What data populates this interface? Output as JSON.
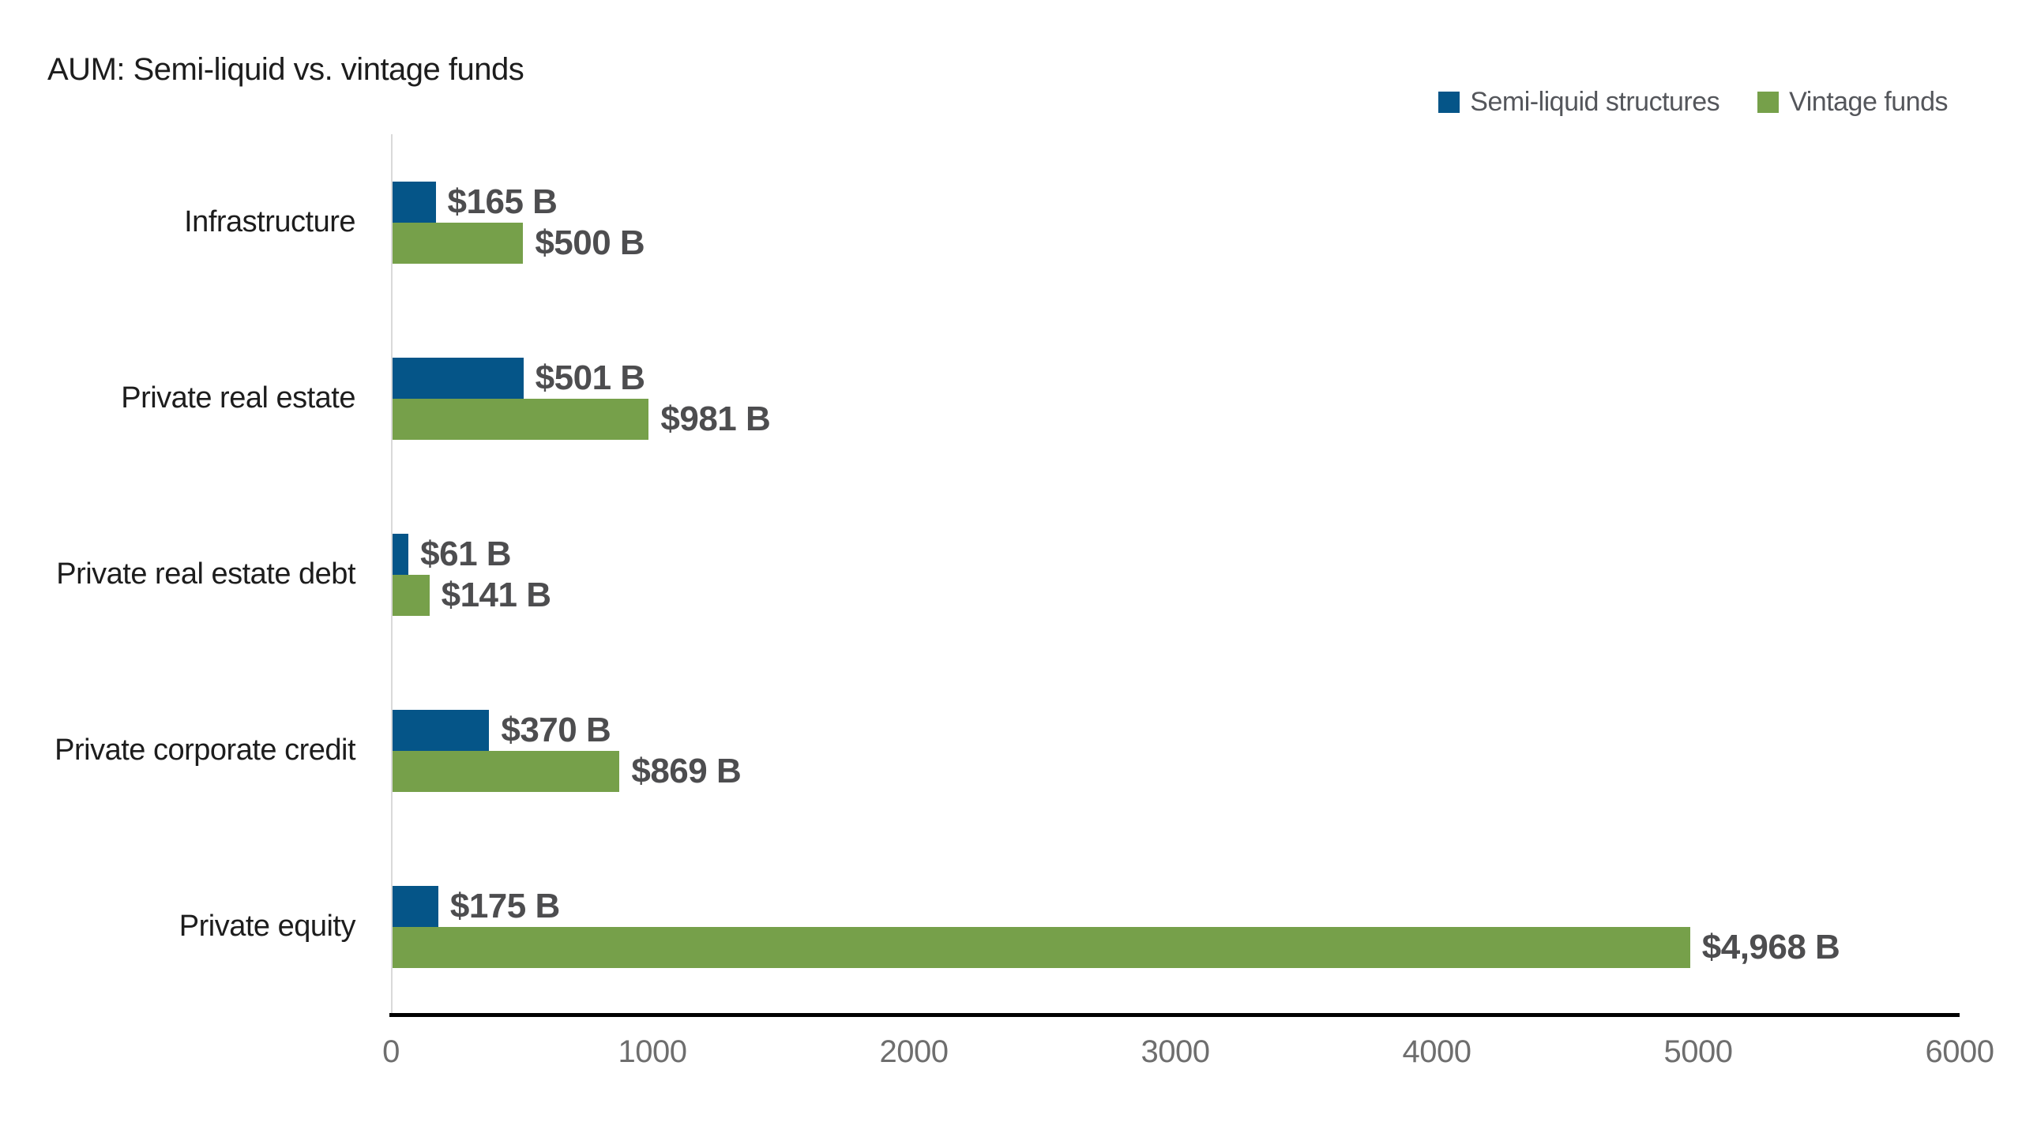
{
  "title": "AUM: Semi-liquid vs. vintage funds",
  "legend": {
    "items": [
      {
        "label": "Semi-liquid structures",
        "color": "#055588"
      },
      {
        "label": "Vintage funds",
        "color": "#76a04a"
      }
    ]
  },
  "chart_data": {
    "type": "bar",
    "orientation": "horizontal",
    "title": "AUM: Semi-liquid vs. vintage funds",
    "categories": [
      "Infrastructure",
      "Private real estate",
      "Private real estate debt",
      "Private corporate credit",
      "Private equity"
    ],
    "series": [
      {
        "name": "Semi-liquid structures",
        "color": "#055588",
        "values": [
          165,
          501,
          61,
          370,
          175
        ],
        "data_labels": [
          "$165 B",
          "$501 B",
          "$61 B",
          "$370 B",
          "$175 B"
        ]
      },
      {
        "name": "Vintage funds",
        "color": "#76a04a",
        "values": [
          500,
          981,
          141,
          869,
          4968
        ],
        "data_labels": [
          "$500 B",
          "$981 B",
          "$141 B",
          "$869 B",
          "$4,968 B"
        ]
      }
    ],
    "xlabel": "",
    "ylabel": "",
    "xlim": [
      0,
      6000
    ],
    "x_ticks": [
      "0",
      "1000",
      "2000",
      "3000",
      "4000",
      "5000",
      "6000"
    ],
    "grid": false,
    "legend_position": "top-right",
    "value_label_color": "#4d4d4f",
    "axis_line_color": "#000000"
  }
}
